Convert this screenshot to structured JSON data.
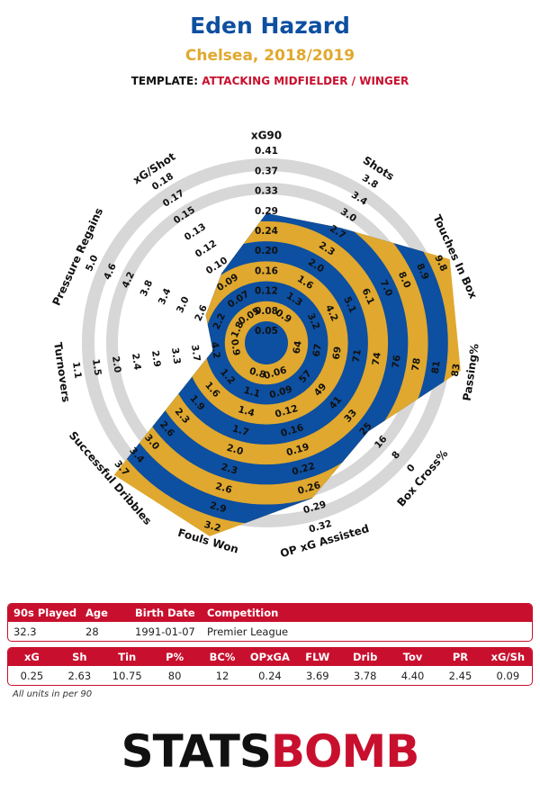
{
  "header": {
    "player": "Eden Hazard",
    "subtitle": "Chelsea, 2018/2019",
    "template_label": "TEMPLATE:",
    "template_value": "ATTACKING MIDFIELDER / WINGER"
  },
  "colors": {
    "player": "#0d4fa0",
    "subtitle": "#e0a82e",
    "accent": "#c8102e",
    "blue": "#0d4fa0",
    "gold": "#e0a82e",
    "ring": "#d7d7d7"
  },
  "chart_data": {
    "type": "radar",
    "axes": [
      {
        "label": "xG90",
        "ticks": [
          "0.05",
          "0.08",
          "0.12",
          "0.16",
          "0.20",
          "0.24",
          "0.29",
          "0.33",
          "0.37",
          "0.41"
        ],
        "value": 0.25
      },
      {
        "label": "Shots",
        "ticks": [
          "0.9",
          "1.3",
          "1.6",
          "2.0",
          "2.3",
          "2.7",
          "3.0",
          "3.4",
          "3.8"
        ],
        "value": 2.63
      },
      {
        "label": "Touches In Box",
        "ticks": [
          "3.2",
          "4.2",
          "5.1",
          "6.1",
          "7.0",
          "8.0",
          "8.9",
          "9.8"
        ],
        "value": 10.75
      },
      {
        "label": "Passing%",
        "ticks": [
          "64",
          "67",
          "69",
          "71",
          "74",
          "76",
          "78",
          "81",
          "83"
        ],
        "value": 80
      },
      {
        "label": "Box Cross%",
        "ticks": [
          "57",
          "49",
          "41",
          "33",
          "25",
          "16",
          "8",
          "0"
        ],
        "value": 12
      },
      {
        "label": "OP xG Assisted",
        "ticks": [
          "0.06",
          "0.09",
          "0.12",
          "0.16",
          "0.19",
          "0.22",
          "0.26",
          "0.29",
          "0.32"
        ],
        "value": 0.24
      },
      {
        "label": "Fouls Won",
        "ticks": [
          "0.8",
          "1.1",
          "1.4",
          "1.7",
          "2.0",
          "2.3",
          "2.6",
          "2.9",
          "3.2"
        ],
        "value": 3.69
      },
      {
        "label": "Successful Dribbles",
        "ticks": [
          "1.2",
          "1.6",
          "1.9",
          "2.3",
          "2.6",
          "3.0",
          "3.4",
          "3.7"
        ],
        "value": 3.78
      },
      {
        "label": "Turnovers",
        "ticks": [
          "0.9",
          "4.2",
          "3.7",
          "3.3",
          "2.9",
          "2.4",
          "2.0",
          "1.5",
          "1.1"
        ],
        "value": 4.4
      },
      {
        "label": "Pressure Regains",
        "ticks": [
          "1.8",
          "2.2",
          "2.6",
          "3.0",
          "3.4",
          "3.8",
          "4.2",
          "4.6",
          "5.0"
        ],
        "value": 2.45
      },
      {
        "label": "xG/Shot",
        "ticks": [
          "0.05",
          "0.07",
          "0.09",
          "0.10",
          "0.12",
          "0.13",
          "0.15",
          "0.17",
          "0.18"
        ],
        "value": 0.09
      }
    ],
    "fill_levels": [
      0.6,
      0.64,
      1.0,
      0.97,
      0.63,
      0.78,
      1.0,
      1.0,
      0.18,
      0.25,
      0.34
    ]
  },
  "info": {
    "headers": [
      "90s Played",
      "Age",
      "Birth Date",
      "Competition"
    ],
    "values": [
      "32.3",
      "28",
      "1991-01-07",
      "Premier League"
    ]
  },
  "stats": {
    "headers": [
      "xG",
      "Sh",
      "Tin",
      "P%",
      "BC%",
      "OPxGA",
      "FLW",
      "Drib",
      "Tov",
      "PR",
      "xG/Sh"
    ],
    "values": [
      "0.25",
      "2.63",
      "10.75",
      "80",
      "12",
      "0.24",
      "3.69",
      "3.78",
      "4.40",
      "2.45",
      "0.09"
    ]
  },
  "footnote": "All units in per 90",
  "brand": {
    "part1": "STATS",
    "part2": "BOMB"
  }
}
